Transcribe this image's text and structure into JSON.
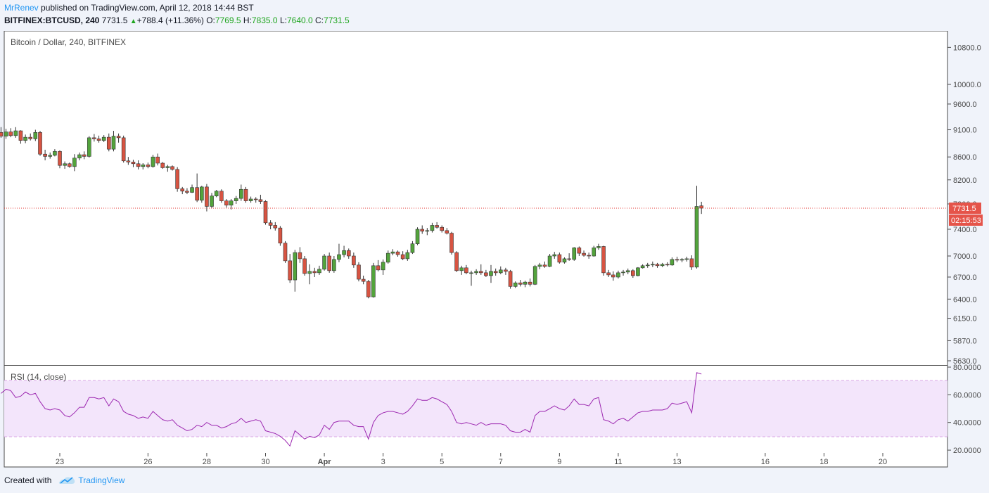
{
  "header": {
    "author": "MrRenev",
    "published": "published on TradingView.com, April 12, 2018 14:44 BST",
    "symbol": "BITFINEX:BTCUSD, 240",
    "last": "7731.5",
    "change": "+788.4 (+11.36%)",
    "o_label": "O:",
    "o_value": "7769.5",
    "h_label": "H:",
    "h_value": "7835.0",
    "l_label": "L:",
    "l_value": "7640.0",
    "c_label": "C:",
    "c_value": "7731.5"
  },
  "footer": {
    "created_with": "Created with",
    "brand": "TradingView"
  },
  "colors": {
    "up": "#6ba583",
    "upBody": "#53a43c",
    "down": "#d75442",
    "rsi": "#9c27b0",
    "rsiBand": "#f3e5fb",
    "lastPrice": "#e53935"
  },
  "chart_data": {
    "type": "candlestick",
    "title": "Bitcoin / Dollar, 240, BITFINEX",
    "price_axis": {
      "scale": "log",
      "ticks": [
        "10800.0",
        "10000.0",
        "9600.0",
        "9100.0",
        "8600.0",
        "8200.0",
        "7800.0",
        "7400.0",
        "7000.0",
        "6700.0",
        "6400.0",
        "6150.0",
        "5870.0",
        "5630.0"
      ],
      "last_price_label": "7731.5",
      "countdown_label": "02:15:53",
      "last_price": 7731.5
    },
    "x_axis": {
      "ticks": [
        "23",
        "26",
        "28",
        "30",
        "Apr",
        "3",
        "5",
        "7",
        "9",
        "11",
        "13",
        "16",
        "18",
        "20"
      ],
      "tick_days": [
        23,
        26,
        28,
        30,
        32,
        34,
        36,
        38,
        40,
        42,
        44,
        47,
        49,
        51
      ]
    },
    "candles": [
      {
        "t": 21.0,
        "o": 9050,
        "h": 9150,
        "l": 8950,
        "c": 8980
      },
      {
        "t": 21.17,
        "o": 8980,
        "h": 9120,
        "l": 8930,
        "c": 9060
      },
      {
        "t": 21.33,
        "o": 9060,
        "h": 9130,
        "l": 8960,
        "c": 8990
      },
      {
        "t": 21.5,
        "o": 8990,
        "h": 9150,
        "l": 8950,
        "c": 9080
      },
      {
        "t": 21.67,
        "o": 9080,
        "h": 9090,
        "l": 8840,
        "c": 8900
      },
      {
        "t": 21.83,
        "o": 8900,
        "h": 9010,
        "l": 8850,
        "c": 8960
      },
      {
        "t": 22.0,
        "o": 8960,
        "h": 9030,
        "l": 8900,
        "c": 8930
      },
      {
        "t": 22.17,
        "o": 8930,
        "h": 9100,
        "l": 8890,
        "c": 9050
      },
      {
        "t": 22.33,
        "o": 9050,
        "h": 9080,
        "l": 8620,
        "c": 8650
      },
      {
        "t": 22.5,
        "o": 8650,
        "h": 8730,
        "l": 8540,
        "c": 8610
      },
      {
        "t": 22.67,
        "o": 8610,
        "h": 8680,
        "l": 8570,
        "c": 8630
      },
      {
        "t": 22.83,
        "o": 8630,
        "h": 8740,
        "l": 8610,
        "c": 8700
      },
      {
        "t": 23.0,
        "o": 8700,
        "h": 8720,
        "l": 8400,
        "c": 8450
      },
      {
        "t": 23.17,
        "o": 8450,
        "h": 8520,
        "l": 8390,
        "c": 8480
      },
      {
        "t": 23.33,
        "o": 8480,
        "h": 8500,
        "l": 8410,
        "c": 8430
      },
      {
        "t": 23.5,
        "o": 8430,
        "h": 8650,
        "l": 8350,
        "c": 8580
      },
      {
        "t": 23.67,
        "o": 8580,
        "h": 8680,
        "l": 8540,
        "c": 8640
      },
      {
        "t": 23.83,
        "o": 8640,
        "h": 8700,
        "l": 8560,
        "c": 8610
      },
      {
        "t": 24.0,
        "o": 8610,
        "h": 8980,
        "l": 8590,
        "c": 8950
      },
      {
        "t": 24.17,
        "o": 8950,
        "h": 9020,
        "l": 8880,
        "c": 8930
      },
      {
        "t": 24.33,
        "o": 8930,
        "h": 8990,
        "l": 8860,
        "c": 8900
      },
      {
        "t": 24.5,
        "o": 8900,
        "h": 9000,
        "l": 8870,
        "c": 8960
      },
      {
        "t": 24.67,
        "o": 8960,
        "h": 9030,
        "l": 8700,
        "c": 8740
      },
      {
        "t": 24.83,
        "o": 8740,
        "h": 9080,
        "l": 8700,
        "c": 8980
      },
      {
        "t": 25.0,
        "o": 8980,
        "h": 9030,
        "l": 8860,
        "c": 8950
      },
      {
        "t": 25.17,
        "o": 8950,
        "h": 8990,
        "l": 8500,
        "c": 8530
      },
      {
        "t": 25.33,
        "o": 8530,
        "h": 8600,
        "l": 8460,
        "c": 8510
      },
      {
        "t": 25.5,
        "o": 8510,
        "h": 8550,
        "l": 8420,
        "c": 8480
      },
      {
        "t": 25.67,
        "o": 8480,
        "h": 8540,
        "l": 8380,
        "c": 8430
      },
      {
        "t": 25.83,
        "o": 8430,
        "h": 8490,
        "l": 8380,
        "c": 8460
      },
      {
        "t": 26.0,
        "o": 8460,
        "h": 8500,
        "l": 8400,
        "c": 8430
      },
      {
        "t": 26.17,
        "o": 8430,
        "h": 8640,
        "l": 8410,
        "c": 8600
      },
      {
        "t": 26.33,
        "o": 8600,
        "h": 8660,
        "l": 8450,
        "c": 8490
      },
      {
        "t": 26.5,
        "o": 8490,
        "h": 8510,
        "l": 8390,
        "c": 8410
      },
      {
        "t": 26.67,
        "o": 8410,
        "h": 8460,
        "l": 8340,
        "c": 8430
      },
      {
        "t": 26.83,
        "o": 8430,
        "h": 8450,
        "l": 8360,
        "c": 8380
      },
      {
        "t": 27.0,
        "o": 8380,
        "h": 8420,
        "l": 8000,
        "c": 8050
      },
      {
        "t": 27.17,
        "o": 8050,
        "h": 8080,
        "l": 7960,
        "c": 8010
      },
      {
        "t": 27.33,
        "o": 8010,
        "h": 8060,
        "l": 7960,
        "c": 7990
      },
      {
        "t": 27.5,
        "o": 7990,
        "h": 8120,
        "l": 7980,
        "c": 8070
      },
      {
        "t": 27.67,
        "o": 8070,
        "h": 8310,
        "l": 7830,
        "c": 7860
      },
      {
        "t": 27.83,
        "o": 7860,
        "h": 8100,
        "l": 7820,
        "c": 8080
      },
      {
        "t": 28.0,
        "o": 8080,
        "h": 8130,
        "l": 7680,
        "c": 7760
      },
      {
        "t": 28.17,
        "o": 7760,
        "h": 7980,
        "l": 7730,
        "c": 7930
      },
      {
        "t": 28.33,
        "o": 7930,
        "h": 8030,
        "l": 7910,
        "c": 8010
      },
      {
        "t": 28.5,
        "o": 8010,
        "h": 8040,
        "l": 7820,
        "c": 7850
      },
      {
        "t": 28.67,
        "o": 7850,
        "h": 7880,
        "l": 7740,
        "c": 7780
      },
      {
        "t": 28.83,
        "o": 7780,
        "h": 7880,
        "l": 7710,
        "c": 7850
      },
      {
        "t": 29.0,
        "o": 7850,
        "h": 7930,
        "l": 7800,
        "c": 7890
      },
      {
        "t": 29.17,
        "o": 7890,
        "h": 8120,
        "l": 7850,
        "c": 8040
      },
      {
        "t": 29.33,
        "o": 8040,
        "h": 8080,
        "l": 7820,
        "c": 7850
      },
      {
        "t": 29.5,
        "o": 7850,
        "h": 7920,
        "l": 7820,
        "c": 7880
      },
      {
        "t": 29.67,
        "o": 7880,
        "h": 7910,
        "l": 7820,
        "c": 7870
      },
      {
        "t": 29.83,
        "o": 7870,
        "h": 7950,
        "l": 7800,
        "c": 7840
      },
      {
        "t": 30.0,
        "o": 7840,
        "h": 7860,
        "l": 7470,
        "c": 7500
      },
      {
        "t": 30.17,
        "o": 7500,
        "h": 7540,
        "l": 7400,
        "c": 7460
      },
      {
        "t": 30.33,
        "o": 7460,
        "h": 7510,
        "l": 7380,
        "c": 7420
      },
      {
        "t": 30.5,
        "o": 7420,
        "h": 7450,
        "l": 7150,
        "c": 7190
      },
      {
        "t": 30.67,
        "o": 7190,
        "h": 7220,
        "l": 6900,
        "c": 6930
      },
      {
        "t": 30.83,
        "o": 6930,
        "h": 7030,
        "l": 6620,
        "c": 6660
      },
      {
        "t": 31.0,
        "o": 6660,
        "h": 7090,
        "l": 6500,
        "c": 7050
      },
      {
        "t": 31.17,
        "o": 7050,
        "h": 7130,
        "l": 6900,
        "c": 6960
      },
      {
        "t": 31.33,
        "o": 6960,
        "h": 7000,
        "l": 6720,
        "c": 6750
      },
      {
        "t": 31.5,
        "o": 6750,
        "h": 6880,
        "l": 6600,
        "c": 6780
      },
      {
        "t": 31.67,
        "o": 6780,
        "h": 6830,
        "l": 6700,
        "c": 6760
      },
      {
        "t": 31.83,
        "o": 6760,
        "h": 6860,
        "l": 6730,
        "c": 6810
      },
      {
        "t": 32.0,
        "o": 6810,
        "h": 7030,
        "l": 6790,
        "c": 7000
      },
      {
        "t": 32.17,
        "o": 7000,
        "h": 7050,
        "l": 6760,
        "c": 6790
      },
      {
        "t": 32.33,
        "o": 6790,
        "h": 7000,
        "l": 6760,
        "c": 6950
      },
      {
        "t": 32.5,
        "o": 6950,
        "h": 7180,
        "l": 6910,
        "c": 7020
      },
      {
        "t": 32.67,
        "o": 7020,
        "h": 7150,
        "l": 6980,
        "c": 7080
      },
      {
        "t": 32.83,
        "o": 7080,
        "h": 7110,
        "l": 6960,
        "c": 7000
      },
      {
        "t": 33.0,
        "o": 7000,
        "h": 7050,
        "l": 6830,
        "c": 6870
      },
      {
        "t": 33.17,
        "o": 6870,
        "h": 6910,
        "l": 6640,
        "c": 6670
      },
      {
        "t": 33.33,
        "o": 6670,
        "h": 6720,
        "l": 6600,
        "c": 6640
      },
      {
        "t": 33.5,
        "o": 6640,
        "h": 6660,
        "l": 6410,
        "c": 6430
      },
      {
        "t": 33.67,
        "o": 6430,
        "h": 6900,
        "l": 6420,
        "c": 6860
      },
      {
        "t": 33.83,
        "o": 6860,
        "h": 6940,
        "l": 6780,
        "c": 6800
      },
      {
        "t": 34.0,
        "o": 6800,
        "h": 6950,
        "l": 6730,
        "c": 6910
      },
      {
        "t": 34.17,
        "o": 6910,
        "h": 7080,
        "l": 6890,
        "c": 7040
      },
      {
        "t": 34.33,
        "o": 7040,
        "h": 7100,
        "l": 7010,
        "c": 7060
      },
      {
        "t": 34.5,
        "o": 7060,
        "h": 7080,
        "l": 6990,
        "c": 7020
      },
      {
        "t": 34.67,
        "o": 7020,
        "h": 7070,
        "l": 6940,
        "c": 6960
      },
      {
        "t": 34.83,
        "o": 6960,
        "h": 7090,
        "l": 6930,
        "c": 7050
      },
      {
        "t": 35.0,
        "o": 7050,
        "h": 7220,
        "l": 7030,
        "c": 7180
      },
      {
        "t": 35.17,
        "o": 7180,
        "h": 7430,
        "l": 7160,
        "c": 7400
      },
      {
        "t": 35.33,
        "o": 7400,
        "h": 7460,
        "l": 7330,
        "c": 7370
      },
      {
        "t": 35.5,
        "o": 7370,
        "h": 7420,
        "l": 7310,
        "c": 7380
      },
      {
        "t": 35.67,
        "o": 7380,
        "h": 7500,
        "l": 7350,
        "c": 7460
      },
      {
        "t": 35.83,
        "o": 7460,
        "h": 7510,
        "l": 7410,
        "c": 7430
      },
      {
        "t": 36.0,
        "o": 7430,
        "h": 7460,
        "l": 7350,
        "c": 7380
      },
      {
        "t": 36.17,
        "o": 7380,
        "h": 7420,
        "l": 7320,
        "c": 7340
      },
      {
        "t": 36.33,
        "o": 7340,
        "h": 7360,
        "l": 7020,
        "c": 7050
      },
      {
        "t": 36.5,
        "o": 7050,
        "h": 7070,
        "l": 6770,
        "c": 6790
      },
      {
        "t": 36.67,
        "o": 6790,
        "h": 6860,
        "l": 6730,
        "c": 6830
      },
      {
        "t": 36.83,
        "o": 6830,
        "h": 6870,
        "l": 6740,
        "c": 6760
      },
      {
        "t": 37.0,
        "o": 6760,
        "h": 6790,
        "l": 6580,
        "c": 6760
      },
      {
        "t": 37.17,
        "o": 6760,
        "h": 6810,
        "l": 6730,
        "c": 6780
      },
      {
        "t": 37.33,
        "o": 6780,
        "h": 6880,
        "l": 6730,
        "c": 6760
      },
      {
        "t": 37.5,
        "o": 6760,
        "h": 6800,
        "l": 6700,
        "c": 6720
      },
      {
        "t": 37.67,
        "o": 6720,
        "h": 6870,
        "l": 6620,
        "c": 6780
      },
      {
        "t": 37.83,
        "o": 6780,
        "h": 6820,
        "l": 6720,
        "c": 6760
      },
      {
        "t": 38.0,
        "o": 6760,
        "h": 6850,
        "l": 6740,
        "c": 6800
      },
      {
        "t": 38.17,
        "o": 6800,
        "h": 6830,
        "l": 6730,
        "c": 6780
      },
      {
        "t": 38.33,
        "o": 6780,
        "h": 6800,
        "l": 6540,
        "c": 6570
      },
      {
        "t": 38.5,
        "o": 6570,
        "h": 6640,
        "l": 6550,
        "c": 6620
      },
      {
        "t": 38.67,
        "o": 6620,
        "h": 6660,
        "l": 6570,
        "c": 6600
      },
      {
        "t": 38.83,
        "o": 6600,
        "h": 6650,
        "l": 6560,
        "c": 6630
      },
      {
        "t": 39.0,
        "o": 6630,
        "h": 6680,
        "l": 6570,
        "c": 6600
      },
      {
        "t": 39.17,
        "o": 6600,
        "h": 6870,
        "l": 6590,
        "c": 6850
      },
      {
        "t": 39.33,
        "o": 6850,
        "h": 6900,
        "l": 6810,
        "c": 6870
      },
      {
        "t": 39.5,
        "o": 6870,
        "h": 6920,
        "l": 6830,
        "c": 6850
      },
      {
        "t": 39.67,
        "o": 6850,
        "h": 7030,
        "l": 6840,
        "c": 7000
      },
      {
        "t": 39.83,
        "o": 7000,
        "h": 7060,
        "l": 6960,
        "c": 7020
      },
      {
        "t": 40.0,
        "o": 7020,
        "h": 7050,
        "l": 6890,
        "c": 6910
      },
      {
        "t": 40.17,
        "o": 6910,
        "h": 6980,
        "l": 6890,
        "c": 6960
      },
      {
        "t": 40.33,
        "o": 6960,
        "h": 7040,
        "l": 6930,
        "c": 6950
      },
      {
        "t": 40.5,
        "o": 6950,
        "h": 7130,
        "l": 6930,
        "c": 7120
      },
      {
        "t": 40.67,
        "o": 7120,
        "h": 7140,
        "l": 7000,
        "c": 7040
      },
      {
        "t": 40.83,
        "o": 7040,
        "h": 7080,
        "l": 6990,
        "c": 7010
      },
      {
        "t": 41.0,
        "o": 7010,
        "h": 7050,
        "l": 6960,
        "c": 7000
      },
      {
        "t": 41.17,
        "o": 7000,
        "h": 7150,
        "l": 6990,
        "c": 7120
      },
      {
        "t": 41.33,
        "o": 7120,
        "h": 7180,
        "l": 7090,
        "c": 7140
      },
      {
        "t": 41.5,
        "o": 7140,
        "h": 7150,
        "l": 6720,
        "c": 6760
      },
      {
        "t": 41.67,
        "o": 6760,
        "h": 6800,
        "l": 6700,
        "c": 6730
      },
      {
        "t": 41.83,
        "o": 6730,
        "h": 6780,
        "l": 6650,
        "c": 6700
      },
      {
        "t": 42.0,
        "o": 6700,
        "h": 6790,
        "l": 6680,
        "c": 6760
      },
      {
        "t": 42.17,
        "o": 6760,
        "h": 6800,
        "l": 6720,
        "c": 6770
      },
      {
        "t": 42.33,
        "o": 6770,
        "h": 6820,
        "l": 6740,
        "c": 6790
      },
      {
        "t": 42.5,
        "o": 6790,
        "h": 6810,
        "l": 6690,
        "c": 6720
      },
      {
        "t": 42.67,
        "o": 6720,
        "h": 6840,
        "l": 6710,
        "c": 6830
      },
      {
        "t": 42.83,
        "o": 6830,
        "h": 6880,
        "l": 6820,
        "c": 6860
      },
      {
        "t": 43.0,
        "o": 6860,
        "h": 6900,
        "l": 6830,
        "c": 6870
      },
      {
        "t": 43.17,
        "o": 6870,
        "h": 6920,
        "l": 6840,
        "c": 6880
      },
      {
        "t": 43.33,
        "o": 6880,
        "h": 6900,
        "l": 6830,
        "c": 6860
      },
      {
        "t": 43.5,
        "o": 6860,
        "h": 6900,
        "l": 6840,
        "c": 6880
      },
      {
        "t": 43.67,
        "o": 6880,
        "h": 6910,
        "l": 6850,
        "c": 6870
      },
      {
        "t": 43.83,
        "o": 6870,
        "h": 6980,
        "l": 6860,
        "c": 6950
      },
      {
        "t": 44.0,
        "o": 6950,
        "h": 6990,
        "l": 6910,
        "c": 6940
      },
      {
        "t": 44.17,
        "o": 6940,
        "h": 6970,
        "l": 6910,
        "c": 6950
      },
      {
        "t": 44.33,
        "o": 6950,
        "h": 6990,
        "l": 6920,
        "c": 6960
      },
      {
        "t": 44.5,
        "o": 6960,
        "h": 7010,
        "l": 6800,
        "c": 6840
      },
      {
        "t": 44.67,
        "o": 6840,
        "h": 8100,
        "l": 6820,
        "c": 7760
      },
      {
        "t": 44.83,
        "o": 7769.5,
        "h": 7835,
        "l": 7640,
        "c": 7731.5
      }
    ],
    "rsi": {
      "label": "RSI (14, close)",
      "axis_ticks": [
        "80.0000",
        "60.0000",
        "40.0000",
        "20.0000"
      ],
      "upper_band": 70,
      "lower_band": 30,
      "ylim": [
        18,
        80
      ],
      "values": [
        61,
        64,
        63,
        58,
        59,
        62,
        60,
        61,
        55,
        50,
        49,
        50,
        49,
        45,
        44,
        47,
        51,
        51,
        58,
        58,
        57,
        58,
        52,
        57,
        55,
        48,
        46,
        45,
        43,
        44,
        43,
        48,
        45,
        42,
        41,
        42,
        38,
        36,
        34,
        35,
        38,
        37,
        40,
        38,
        38,
        36,
        37,
        39,
        40,
        43,
        40,
        41,
        42,
        41,
        34,
        33,
        32,
        30,
        27,
        23,
        34,
        31,
        28,
        30,
        29,
        31,
        38,
        35,
        40,
        41,
        41,
        41,
        38,
        37,
        37,
        28,
        40,
        45,
        47,
        48,
        48,
        47,
        46,
        48,
        52,
        57,
        56,
        56,
        58,
        57,
        55,
        53,
        48,
        40,
        39,
        40,
        39,
        38,
        40,
        38,
        39,
        39,
        39,
        38,
        34,
        33,
        33,
        35,
        33,
        45,
        48,
        48,
        50,
        52,
        50,
        49,
        52,
        57,
        53,
        53,
        52,
        57,
        58,
        42,
        41,
        39,
        42,
        43,
        41,
        44,
        47,
        48,
        48,
        49,
        49,
        49,
        50,
        54,
        53,
        54,
        55,
        47,
        76,
        75
      ]
    }
  }
}
